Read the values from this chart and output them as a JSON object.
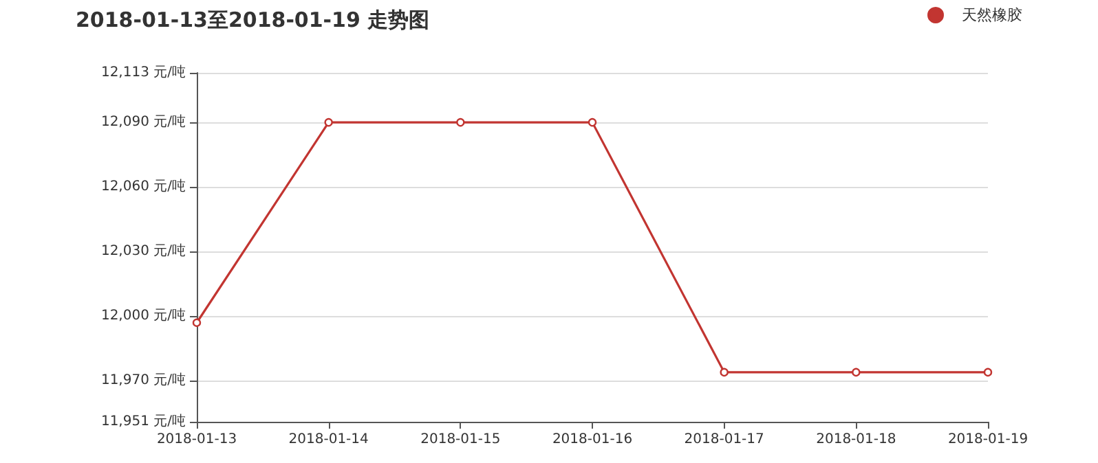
{
  "chart_data": {
    "type": "line",
    "title": "2018-01-13至2018-01-19 走势图",
    "categories": [
      "2018-01-13",
      "2018-01-14",
      "2018-01-15",
      "2018-01-16",
      "2018-01-17",
      "2018-01-18",
      "2018-01-19"
    ],
    "series": [
      {
        "name": "天然橡胶",
        "color": "#c23531",
        "values": [
          11997,
          12090,
          12090,
          12090,
          11974,
          11974,
          11974
        ]
      }
    ],
    "ylim": [
      11951,
      12113
    ],
    "yticks": [
      {
        "value": 11951,
        "label": "11,951 元/吨"
      },
      {
        "value": 11970,
        "label": "11,970 元/吨"
      },
      {
        "value": 12000,
        "label": "12,000 元/吨"
      },
      {
        "value": 12030,
        "label": "12,030 元/吨"
      },
      {
        "value": 12060,
        "label": "12,060 元/吨"
      },
      {
        "value": 12090,
        "label": "12,090 元/吨"
      },
      {
        "value": 12113,
        "label": "12,113 元/吨"
      }
    ],
    "grid": "y",
    "legend": "top right",
    "marker": "circle",
    "line_style": "solid"
  }
}
